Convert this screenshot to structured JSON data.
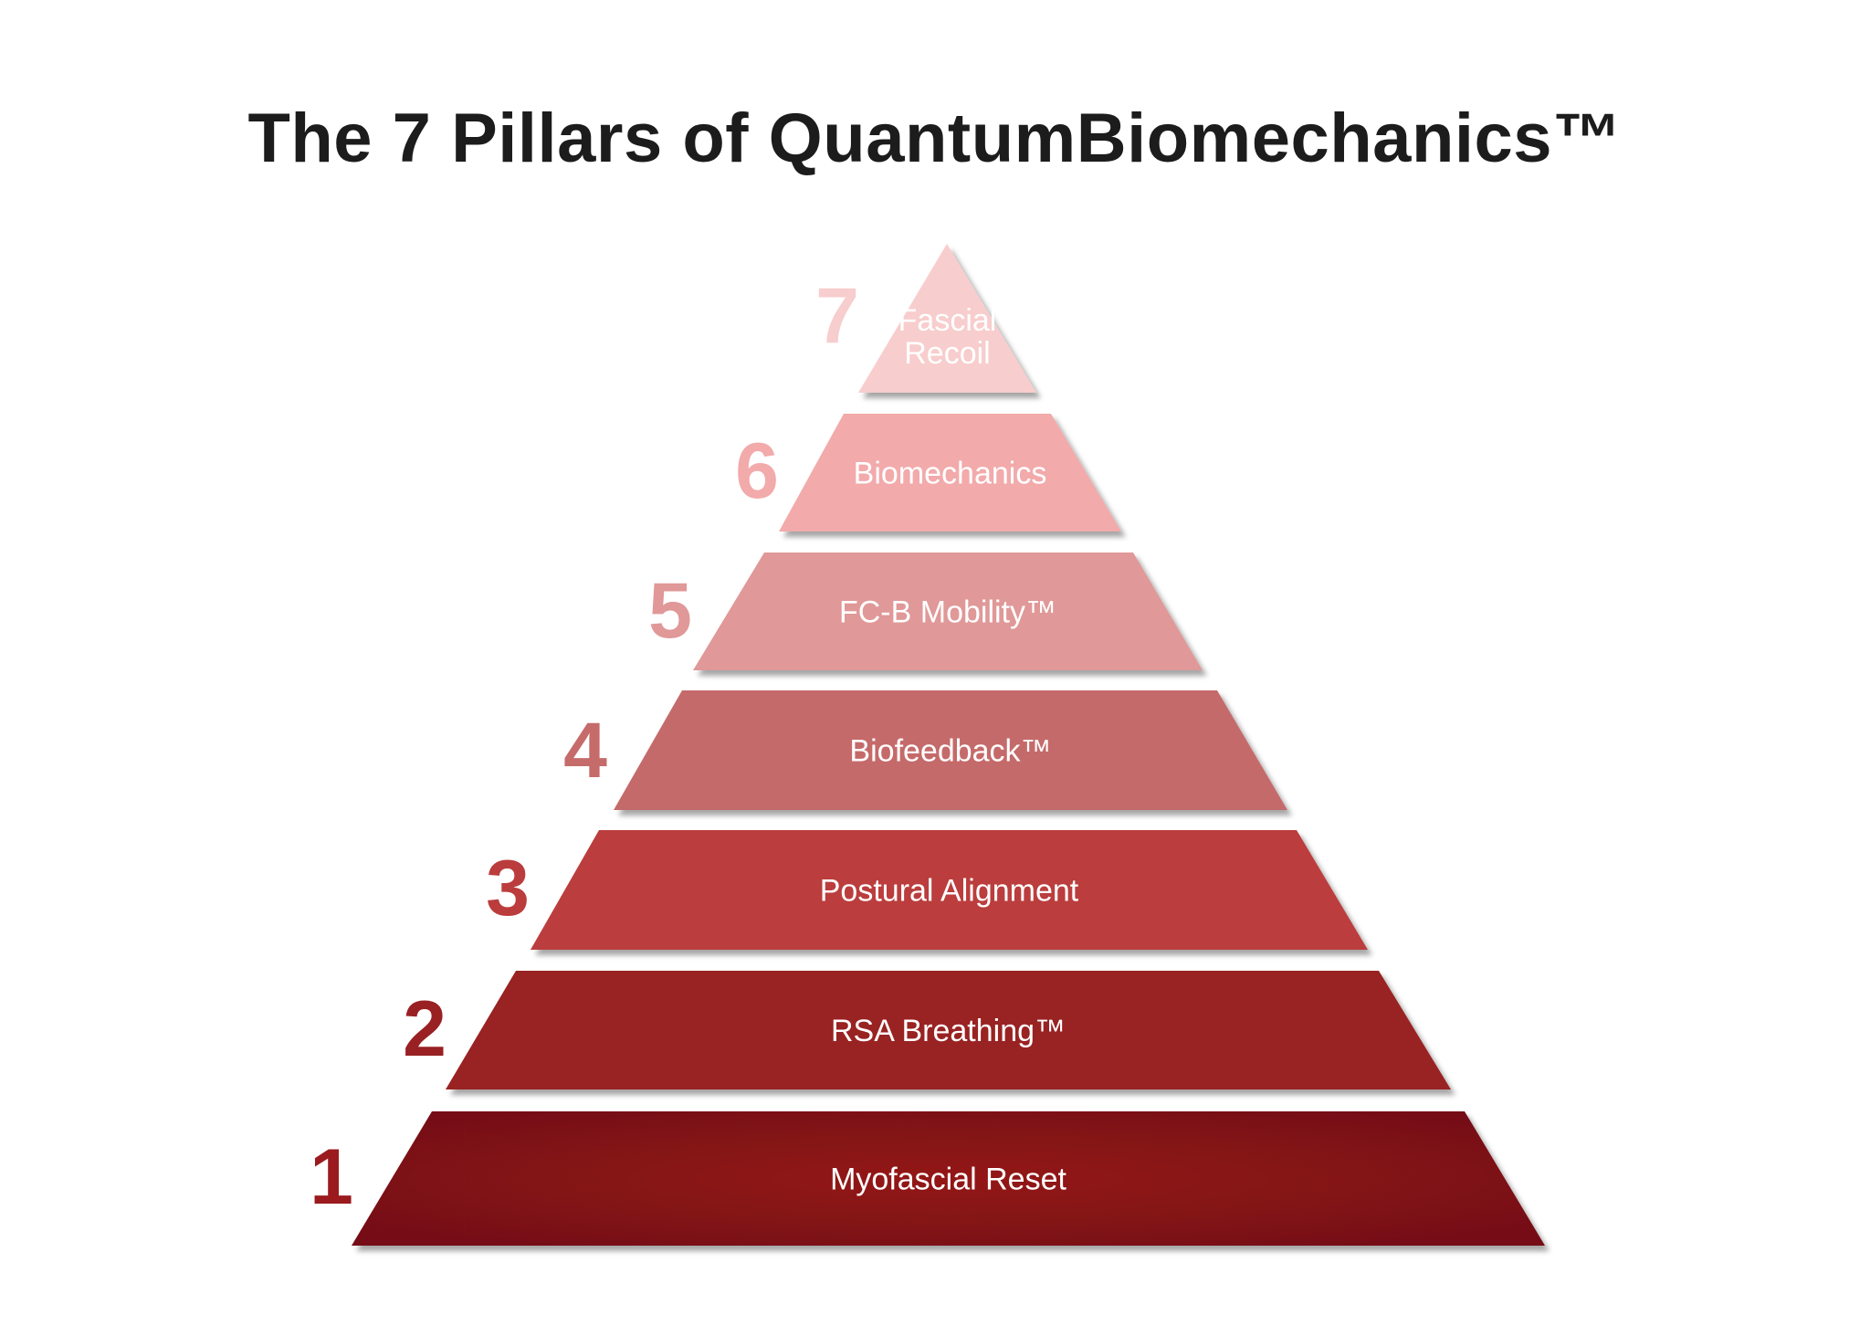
{
  "title": "The 7 Pillars of QuantumBiomechanics™",
  "pillars": [
    {
      "number": "1",
      "label": "Myofascial Reset",
      "color": "#861316",
      "number_color": "#9a1a1e"
    },
    {
      "number": "2",
      "label": "RSA Breathing™",
      "color": "#992023",
      "number_color": "#992023"
    },
    {
      "number": "3",
      "label": "Postural Alignment",
      "color": "#bb3c3c",
      "number_color": "#bb3c3c"
    },
    {
      "number": "4",
      "label": "Biofeedback™",
      "color": "#c56b6a",
      "number_color": "#c56b6a"
    },
    {
      "number": "5",
      "label": "FC-B Mobility™",
      "color": "#e09898",
      "number_color": "#e09898"
    },
    {
      "number": "6",
      "label": "Biomechanics",
      "color": "#f2aaab",
      "number_color": "#f2aaab"
    },
    {
      "number": "7",
      "label": "Fascial Recoil",
      "label_lines": [
        "Fascial",
        "Recoil"
      ],
      "color": "#f8cdcd",
      "number_color": "#f8cdcd"
    }
  ]
}
